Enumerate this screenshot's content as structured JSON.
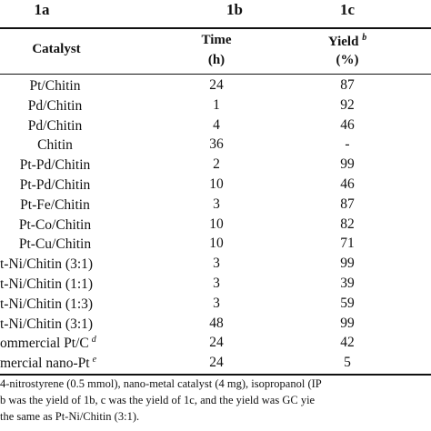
{
  "top_labels": [
    "1a",
    "1b",
    "1c"
  ],
  "headers": {
    "catalyst": "Catalyst",
    "time": "Time",
    "time_unit": "(h)",
    "yield": "Yield",
    "yield_sup": "b",
    "yield_unit": "(%)"
  },
  "rows": [
    {
      "catalyst": "Pt/Chitin",
      "sup": "",
      "time": "24",
      "yield": "87"
    },
    {
      "catalyst": "Pd/Chitin",
      "sup": "",
      "time": "1",
      "yield": "92"
    },
    {
      "catalyst": "Pd/Chitin",
      "sup": "",
      "time": "4",
      "yield": "46"
    },
    {
      "catalyst": "Chitin",
      "sup": "",
      "time": "36",
      "yield": "-"
    },
    {
      "catalyst": "Pt-Pd/Chitin",
      "sup": "",
      "time": "2",
      "yield": "99"
    },
    {
      "catalyst": "Pt-Pd/Chitin",
      "sup": "",
      "time": "10",
      "yield": "46"
    },
    {
      "catalyst": "Pt-Fe/Chitin",
      "sup": "",
      "time": "3",
      "yield": "87"
    },
    {
      "catalyst": "Pt-Co/Chitin",
      "sup": "",
      "time": "10",
      "yield": "82"
    },
    {
      "catalyst": "Pt-Cu/Chitin",
      "sup": "",
      "time": "10",
      "yield": "71"
    },
    {
      "catalyst": "t-Ni/Chitin (3:1)",
      "sup": "",
      "time": "3",
      "yield": "99"
    },
    {
      "catalyst": "t-Ni/Chitin (1:1)",
      "sup": "",
      "time": "3",
      "yield": "39"
    },
    {
      "catalyst": "t-Ni/Chitin (1:3)",
      "sup": "",
      "time": "3",
      "yield": "59"
    },
    {
      "catalyst": "t-Ni/Chitin (3:1)",
      "sup": "",
      "time": "48",
      "yield": "99"
    },
    {
      "catalyst": "ommercial Pt/C",
      "sup": "d",
      "time": "24",
      "yield": "42"
    },
    {
      "catalyst": "mercial nano-Pt",
      "sup": "e",
      "time": "24",
      "yield": "5"
    }
  ],
  "footnotes": [
    "4-nitrostyrene (0.5 mmol), nano-metal catalyst (4 mg), isopropanol (IP",
    "b was the yield of 1b, c was the yield of 1c, and the yield was GC yie",
    "the same as Pt-Ni/Chitin (3:1)."
  ]
}
